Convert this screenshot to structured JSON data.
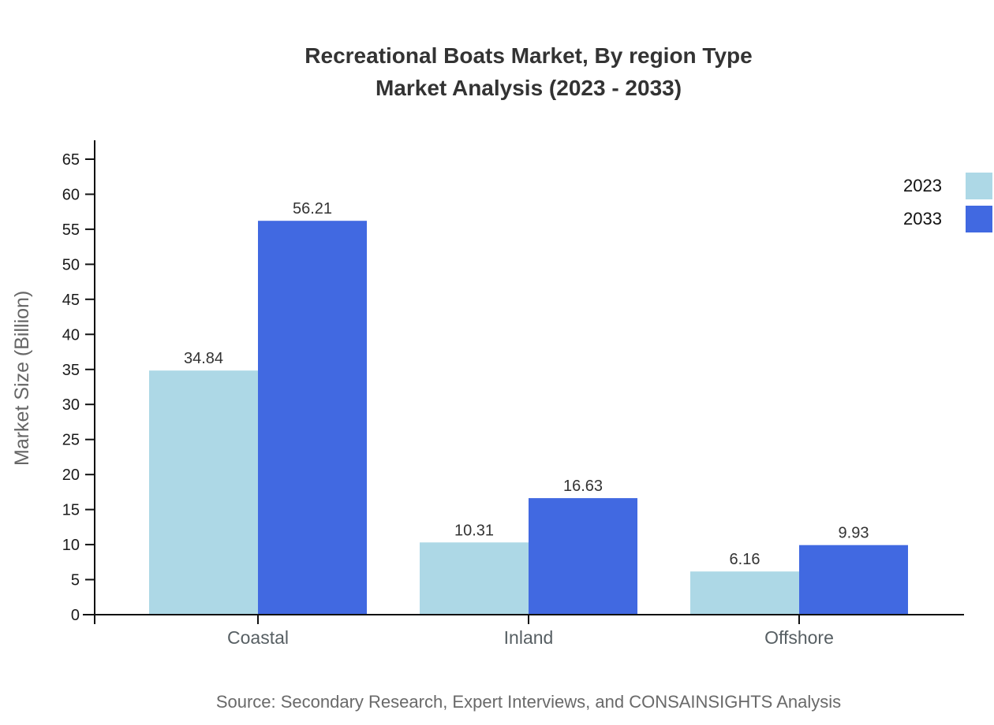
{
  "title": {
    "line1": "Recreational Boats Market, By region Type",
    "line2": "Market Analysis (2023 - 2033)"
  },
  "chart_data": {
    "type": "bar",
    "categories": [
      "Coastal",
      "Inland",
      "Offshore"
    ],
    "series": [
      {
        "name": "2023",
        "color": "#ADD8E6",
        "values": [
          34.84,
          10.31,
          6.16
        ]
      },
      {
        "name": "2033",
        "color": "#4169E1",
        "values": [
          56.21,
          16.63,
          9.93
        ]
      }
    ],
    "title": "Recreational Boats Market, By region Type Market Analysis (2023 - 2033)",
    "xlabel": "",
    "ylabel": "Market Size (Billion)",
    "ylim": [
      0,
      65
    ],
    "ytick_step": 5,
    "grid": false,
    "legend_position": "top-right",
    "value_labels": true
  },
  "footer": {
    "source": "Source: Secondary Research, Expert Interviews, and CONSAINSIGHTS Analysis"
  }
}
